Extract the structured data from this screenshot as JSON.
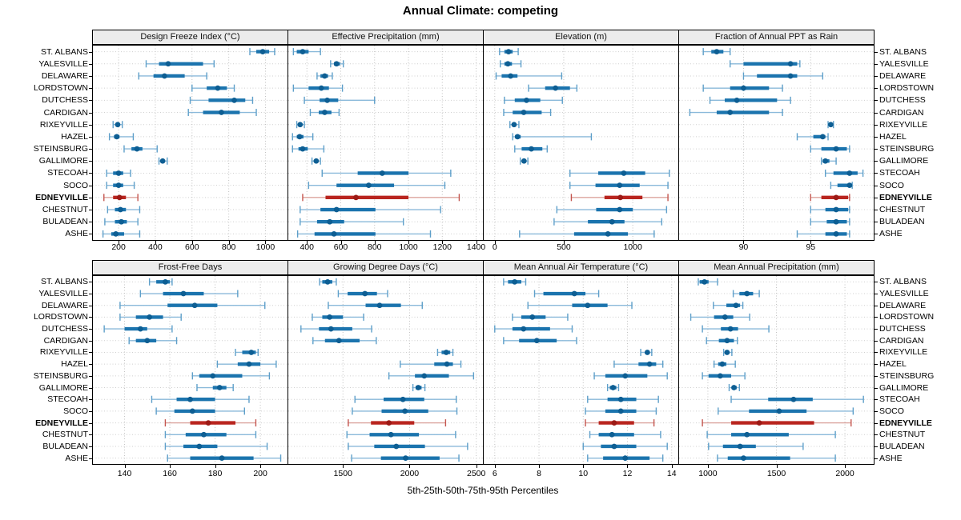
{
  "title": "Annual Climate: competing",
  "x_axis_label": "5th-25th-50th-75th-95th Percentiles",
  "percentiles": [
    "5th",
    "25th",
    "50th",
    "75th",
    "95th"
  ],
  "stations": [
    "ST. ALBANS",
    "YALESVILLE",
    "DELAWARE",
    "LORDSTOWN",
    "DUTCHESS",
    "CARDIGAN",
    "RIXEYVILLE",
    "HAZEL",
    "STEINSBURG",
    "GALLIMORE",
    "STECOAH",
    "SOCO",
    "EDNEYVILLE",
    "CHESTNUT",
    "BULADEAN",
    "ASHE"
  ],
  "highlight_station": "EDNEYVILLE",
  "colors": {
    "series_bar": "#1b74ae",
    "series_dot": "#0d5e93",
    "series_whisker": "#8ab9da",
    "series_cap": "#5e9fc9",
    "highlight_bar": "#b9251f",
    "highlight_dot": "#9c1a16",
    "highlight_whisker": "#dca49e",
    "highlight_cap": "#c4554e",
    "strip_bg": "#ececec",
    "grid": "#c2c2c2",
    "rowline": "#cfcfcf"
  },
  "chart_data": [
    {
      "type": "dotplot-interval",
      "title": "Design Freeze Index (°C)",
      "xlim": [
        60,
        1120
      ],
      "ticks": [
        200,
        400,
        600,
        800,
        1000
      ],
      "values": [
        [
          915,
          950,
          985,
          1020,
          1050
        ],
        [
          350,
          420,
          470,
          660,
          720
        ],
        [
          310,
          390,
          450,
          560,
          680
        ],
        [
          600,
          680,
          740,
          790,
          830
        ],
        [
          590,
          690,
          830,
          890,
          930
        ],
        [
          580,
          660,
          760,
          860,
          950
        ],
        [
          170,
          185,
          195,
          205,
          220
        ],
        [
          150,
          175,
          190,
          205,
          280
        ],
        [
          230,
          270,
          300,
          330,
          410
        ],
        [
          420,
          430,
          440,
          450,
          465
        ],
        [
          135,
          170,
          200,
          225,
          265
        ],
        [
          135,
          170,
          200,
          225,
          285
        ],
        [
          120,
          170,
          205,
          240,
          305
        ],
        [
          140,
          180,
          210,
          240,
          315
        ],
        [
          125,
          180,
          215,
          245,
          305
        ],
        [
          115,
          160,
          185,
          230,
          315
        ]
      ]
    },
    {
      "type": "dotplot-interval",
      "title": "Effective Precipitation (mm)",
      "xlim": [
        290,
        1440
      ],
      "ticks": [
        400,
        600,
        800,
        1000,
        1200,
        1400
      ],
      "values": [
        [
          320,
          340,
          375,
          410,
          480
        ],
        [
          540,
          560,
          575,
          595,
          615
        ],
        [
          460,
          480,
          505,
          525,
          550
        ],
        [
          320,
          410,
          485,
          530,
          610
        ],
        [
          385,
          475,
          520,
          585,
          800
        ],
        [
          420,
          470,
          505,
          545,
          590
        ],
        [
          340,
          350,
          360,
          372,
          385
        ],
        [
          315,
          340,
          357,
          380,
          435
        ],
        [
          315,
          350,
          375,
          405,
          500
        ],
        [
          430,
          445,
          455,
          465,
          480
        ],
        [
          490,
          700,
          845,
          1000,
          1250
        ],
        [
          410,
          575,
          765,
          915,
          1215
        ],
        [
          375,
          510,
          690,
          1000,
          1300
        ],
        [
          360,
          480,
          575,
          805,
          1190
        ],
        [
          360,
          460,
          535,
          620,
          970
        ],
        [
          345,
          445,
          560,
          805,
          1130
        ]
      ]
    },
    {
      "type": "dotplot-interval",
      "title": "Elevation (m)",
      "xlim": [
        -80,
        1330
      ],
      "ticks": [
        0,
        500,
        1000
      ],
      "values": [
        [
          35,
          70,
          100,
          130,
          170
        ],
        [
          40,
          70,
          95,
          125,
          190
        ],
        [
          10,
          50,
          115,
          165,
          485
        ],
        [
          245,
          365,
          440,
          545,
          595
        ],
        [
          70,
          145,
          230,
          330,
          490
        ],
        [
          65,
          130,
          210,
          340,
          405
        ],
        [
          110,
          128,
          140,
          155,
          175
        ],
        [
          130,
          147,
          165,
          188,
          700
        ],
        [
          145,
          195,
          265,
          345,
          380
        ],
        [
          185,
          200,
          212,
          225,
          240
        ],
        [
          545,
          750,
          935,
          1090,
          1265
        ],
        [
          545,
          730,
          905,
          1050,
          1255
        ],
        [
          555,
          795,
          910,
          1070,
          1255
        ],
        [
          450,
          735,
          905,
          1000,
          1245
        ],
        [
          430,
          675,
          850,
          940,
          1210
        ],
        [
          180,
          575,
          820,
          965,
          1155
        ]
      ]
    },
    {
      "type": "dotplot-interval",
      "title": "Fraction of Annual PPT as Rain",
      "xlim": [
        85.2,
        99.7
      ],
      "ticks": [
        90,
        95
      ],
      "values": [
        [
          87.0,
          87.6,
          88.0,
          88.5,
          89.0
        ],
        [
          89.0,
          90.0,
          93.5,
          94.0,
          94.2
        ],
        [
          90.0,
          91.0,
          93.5,
          94.0,
          95.9
        ],
        [
          87.0,
          89.0,
          90.0,
          91.9,
          92.9
        ],
        [
          87.5,
          88.6,
          89.5,
          92.5,
          93.5
        ],
        [
          86.0,
          88.0,
          89.0,
          91.9,
          92.9
        ],
        [
          96.3,
          96.4,
          96.5,
          96.6,
          96.7
        ],
        [
          94.0,
          95.2,
          95.9,
          96.1,
          96.3
        ],
        [
          95.0,
          95.8,
          96.9,
          97.7,
          97.9
        ],
        [
          95.8,
          95.9,
          96.1,
          96.4,
          96.9
        ],
        [
          96.1,
          96.7,
          97.9,
          98.5,
          98.9
        ],
        [
          96.5,
          97.0,
          97.9,
          98.0,
          98.1
        ],
        [
          95.0,
          95.8,
          96.9,
          97.8,
          97.9
        ],
        [
          95.0,
          96.1,
          96.9,
          97.8,
          97.9
        ],
        [
          95.0,
          96.2,
          96.9,
          97.7,
          97.9
        ],
        [
          94.0,
          96.1,
          96.9,
          97.7,
          97.9
        ]
      ]
    },
    {
      "type": "dotplot-interval",
      "title": "Frost-Free Days",
      "xlim": [
        126,
        212
      ],
      "ticks": [
        140,
        160,
        180,
        200
      ],
      "values": [
        [
          151,
          154,
          158,
          160,
          161
        ],
        [
          147,
          157,
          166,
          175,
          190
        ],
        [
          138,
          159,
          171,
          181,
          202
        ],
        [
          138,
          145,
          151,
          157,
          165
        ],
        [
          131,
          140,
          147,
          150,
          161
        ],
        [
          142,
          145,
          150,
          154,
          163
        ],
        [
          189,
          192,
          196,
          198,
          199
        ],
        [
          181,
          190,
          195,
          200,
          207
        ],
        [
          170,
          173,
          179,
          192,
          204
        ],
        [
          172,
          179,
          182,
          185,
          188
        ],
        [
          152,
          163,
          169,
          180,
          195
        ],
        [
          154,
          162,
          170,
          180,
          193
        ],
        [
          158,
          169,
          177,
          189,
          198
        ],
        [
          158,
          167,
          175,
          185,
          198
        ],
        [
          158,
          166,
          173,
          181,
          203
        ],
        [
          159,
          169,
          183,
          197,
          209
        ]
      ]
    },
    {
      "type": "dotplot-interval",
      "title": "Growing Degree Days (°C)",
      "xlim": [
        1090,
        2550
      ],
      "ticks": [
        1500,
        2000,
        2500
      ],
      "values": [
        [
          1325,
          1345,
          1385,
          1420,
          1450
        ],
        [
          1465,
          1535,
          1665,
          1755,
          1835
        ],
        [
          1390,
          1670,
          1775,
          1935,
          2095
        ],
        [
          1270,
          1345,
          1400,
          1500,
          1655
        ],
        [
          1185,
          1320,
          1410,
          1570,
          1715
        ],
        [
          1275,
          1365,
          1470,
          1625,
          1750
        ],
        [
          2210,
          2240,
          2275,
          2305,
          2325
        ],
        [
          1930,
          2185,
          2280,
          2325,
          2385
        ],
        [
          1845,
          2040,
          2110,
          2295,
          2480
        ],
        [
          2025,
          2045,
          2065,
          2090,
          2115
        ],
        [
          1590,
          1805,
          1950,
          2110,
          2350
        ],
        [
          1570,
          1790,
          1965,
          2140,
          2355
        ],
        [
          1540,
          1710,
          1845,
          2035,
          2270
        ],
        [
          1530,
          1700,
          1860,
          2070,
          2345
        ],
        [
          1540,
          1735,
          1900,
          2115,
          2435
        ],
        [
          1565,
          1785,
          1970,
          2225,
          2370
        ]
      ]
    },
    {
      "type": "dotplot-interval",
      "title": "Mean Annual Air Temperature (°C)",
      "xlim": [
        5.5,
        14.3
      ],
      "ticks": [
        6,
        8,
        10,
        12,
        14
      ],
      "values": [
        [
          6.4,
          6.6,
          6.9,
          7.2,
          7.4
        ],
        [
          7.8,
          8.2,
          9.6,
          10.1,
          10.7
        ],
        [
          7.5,
          9.5,
          10.2,
          11.1,
          12.2
        ],
        [
          6.8,
          7.2,
          7.7,
          8.3,
          9.3
        ],
        [
          6.0,
          6.8,
          7.3,
          8.5,
          9.5
        ],
        [
          6.4,
          7.1,
          7.9,
          8.8,
          9.7
        ],
        [
          12.6,
          12.8,
          12.9,
          13.0,
          13.1
        ],
        [
          11.4,
          12.5,
          13.0,
          13.3,
          13.6
        ],
        [
          10.5,
          11.0,
          11.9,
          12.9,
          13.8
        ],
        [
          11.1,
          11.2,
          11.35,
          11.5,
          11.6
        ],
        [
          10.2,
          11.1,
          11.7,
          12.4,
          13.4
        ],
        [
          10.1,
          11.0,
          11.7,
          12.4,
          13.3
        ],
        [
          10.1,
          10.7,
          11.4,
          12.3,
          13.2
        ],
        [
          10.3,
          10.7,
          11.3,
          12.3,
          13.5
        ],
        [
          10.0,
          10.8,
          11.4,
          12.4,
          13.8
        ],
        [
          10.2,
          10.9,
          11.9,
          13.0,
          13.6
        ]
      ]
    },
    {
      "type": "dotplot-interval",
      "title": "Mean Annual Precipitation (mm)",
      "xlim": [
        790,
        2210
      ],
      "ticks": [
        1000,
        1500,
        2000
      ],
      "values": [
        [
          930,
          940,
          975,
          1005,
          1070
        ],
        [
          1185,
          1230,
          1285,
          1330,
          1375
        ],
        [
          1040,
          1135,
          1205,
          1235,
          1255
        ],
        [
          875,
          1045,
          1125,
          1185,
          1305
        ],
        [
          960,
          1095,
          1165,
          1220,
          1445
        ],
        [
          990,
          1080,
          1140,
          1190,
          1215
        ],
        [
          1115,
          1125,
          1140,
          1155,
          1175
        ],
        [
          1045,
          1075,
          1105,
          1135,
          1200
        ],
        [
          960,
          1005,
          1090,
          1170,
          1270
        ],
        [
          1155,
          1175,
          1190,
          1210,
          1230
        ],
        [
          1170,
          1440,
          1625,
          1765,
          2135
        ],
        [
          1075,
          1300,
          1520,
          1720,
          2060
        ],
        [
          960,
          1170,
          1375,
          1775,
          2045
        ],
        [
          995,
          1170,
          1285,
          1590,
          1930
        ],
        [
          1005,
          1110,
          1235,
          1350,
          1695
        ],
        [
          1070,
          1145,
          1260,
          1600,
          1930
        ]
      ]
    }
  ]
}
